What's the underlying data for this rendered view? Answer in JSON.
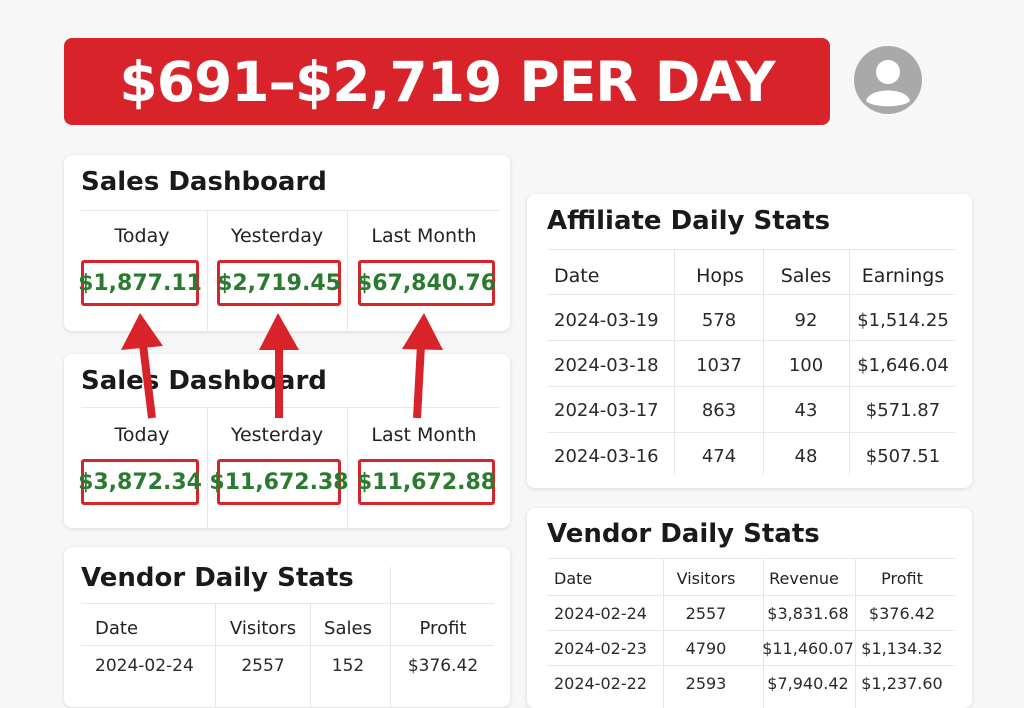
{
  "banner": {
    "headline": "$691–$2,719 PER DAY"
  },
  "colors": {
    "banner_bg": "#d8232a",
    "money_green": "#2a7a2f",
    "box_border": "#d8232a",
    "arrow": "#d8232a"
  },
  "icons": {
    "avatar": "user-avatar-icon",
    "arrow": "red-up-arrow"
  },
  "sales_dashboard_1": {
    "title": "Sales Dashboard",
    "metrics": [
      {
        "label": "Today",
        "value": "$1,877.11"
      },
      {
        "label": "Yesterday",
        "value": "$2,719.45"
      },
      {
        "label": "Last Month",
        "value": "$67,840.76"
      }
    ]
  },
  "sales_dashboard_2": {
    "title": "Sales Dashboard",
    "metrics": [
      {
        "label": "Today",
        "value": "$3,872.34"
      },
      {
        "label": "Yesterday",
        "value": "$11,672.38"
      },
      {
        "label": "Last Month",
        "value": "$11,672.88"
      }
    ]
  },
  "affiliate_stats": {
    "title": "Affiliate Daily Stats",
    "headers": [
      "Date",
      "Hops",
      "Sales",
      "Earnings"
    ],
    "rows": [
      [
        "2024-03-19",
        "578",
        "92",
        "$1,514.25"
      ],
      [
        "2024-03-18",
        "1037",
        "100",
        "$1,646.04"
      ],
      [
        "2024-03-17",
        "863",
        "43",
        "$571.87"
      ],
      [
        "2024-03-16",
        "474",
        "48",
        "$507.51"
      ]
    ]
  },
  "vendor_stats_left": {
    "title": "Vendor Daily Stats",
    "headers": [
      "Date",
      "Visitors",
      "Sales",
      "Profit"
    ],
    "rows": [
      [
        "2024-02-24",
        "2557",
        "152",
        "$376.42"
      ]
    ]
  },
  "vendor_stats_right": {
    "title": "Vendor Daily Stats",
    "headers": [
      "Date",
      "Visitors",
      "Revenue",
      "Profit"
    ],
    "rows": [
      [
        "2024-02-24",
        "2557",
        "$3,831.68",
        "$376.42"
      ],
      [
        "2024-02-23",
        "4790",
        "$11,460.07",
        "$1,134.32"
      ],
      [
        "2024-02-22",
        "2593",
        "$7,940.42",
        "$1,237.60"
      ]
    ]
  }
}
